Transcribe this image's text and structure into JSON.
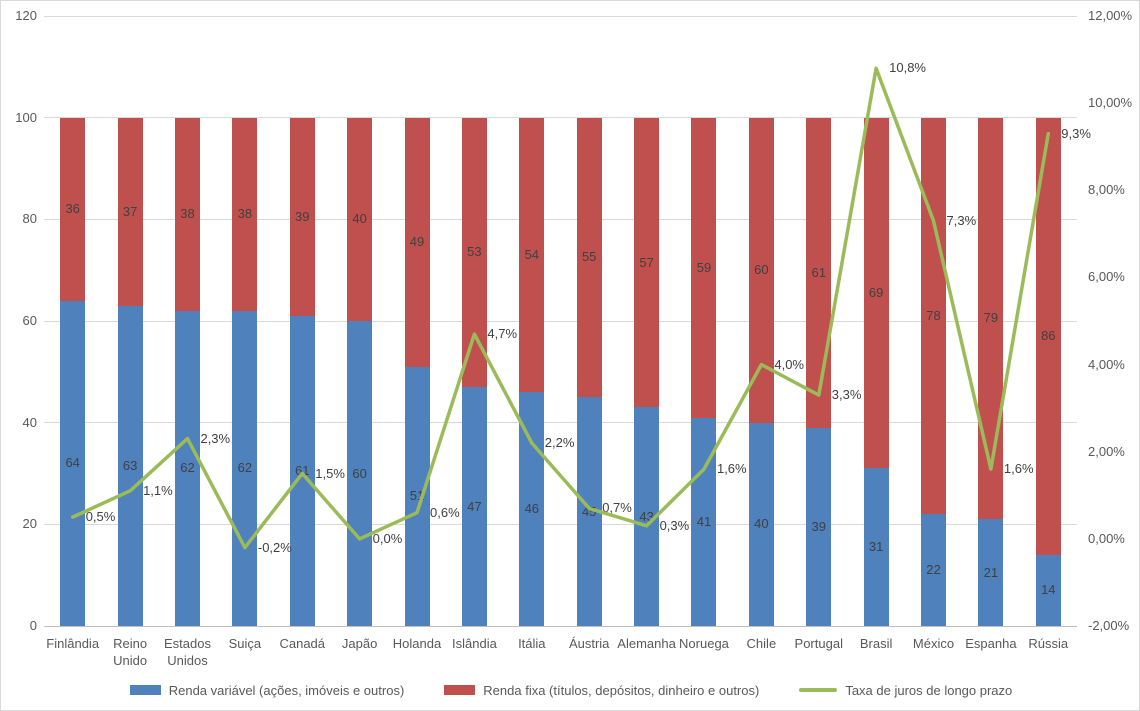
{
  "chart_data": {
    "type": "bar",
    "subtype": "stacked-bar-with-line",
    "title": "",
    "categories": [
      "Finlândia",
      "Reino Unido",
      "Estados Unidos",
      "Suiça",
      "Canadá",
      "Japão",
      "Holanda",
      "Islândia",
      "Itália",
      "Áustria",
      "Alemanha",
      "Noruega",
      "Chile",
      "Portugal",
      "Brasil",
      "México",
      "Espanha",
      "Rússia"
    ],
    "series": [
      {
        "name": "Renda variável (ações, imóveis e outros)",
        "type": "bar",
        "axis": "left",
        "color": "#4F81BD",
        "values": [
          64,
          63,
          62,
          62,
          61,
          60,
          51,
          47,
          46,
          45,
          43,
          41,
          40,
          39,
          31,
          22,
          21,
          14
        ]
      },
      {
        "name": "Renda fixa (títulos, depósitos, dinheiro e outros)",
        "type": "bar",
        "axis": "left",
        "color": "#C0504D",
        "values": [
          36,
          37,
          38,
          38,
          39,
          40,
          49,
          53,
          54,
          55,
          57,
          59,
          60,
          61,
          69,
          78,
          79,
          86
        ]
      },
      {
        "name": "Taxa de juros de longo prazo",
        "type": "line",
        "axis": "right",
        "color": "#9BBB59",
        "values": [
          0.5,
          1.1,
          2.3,
          -0.2,
          1.5,
          0.0,
          0.6,
          4.7,
          2.2,
          0.7,
          0.3,
          1.6,
          4.0,
          3.3,
          10.8,
          7.3,
          1.6,
          9.3
        ],
        "labels": [
          "0,5%",
          "1,1%",
          "2,3%",
          "-0,2%",
          "1,5%",
          "0,0%",
          "0,6%",
          "4,7%",
          "2,2%",
          "0,7%",
          "0,3%",
          "1,6%",
          "4,0%",
          "3,3%",
          "10,8%",
          "7,3%",
          "1,6%",
          "9,3%"
        ]
      }
    ],
    "left_axis": {
      "min": 0,
      "max": 120,
      "step": 20,
      "ticks": [
        "0",
        "20",
        "40",
        "60",
        "80",
        "100",
        "120"
      ]
    },
    "right_axis": {
      "min": -2,
      "max": 12,
      "step": 2,
      "ticks": [
        "-2,00%",
        "0,00%",
        "2,00%",
        "4,00%",
        "6,00%",
        "8,00%",
        "10,00%",
        "12,00%"
      ]
    },
    "grid": true,
    "legend_position": "bottom",
    "stack_total": 100
  },
  "colors": {
    "gridline": "#D9D9D9",
    "axis_line": "#BFBFBF",
    "axis_text": "#595959",
    "data_label_text": "#404040",
    "background": "#FFFFFF"
  }
}
